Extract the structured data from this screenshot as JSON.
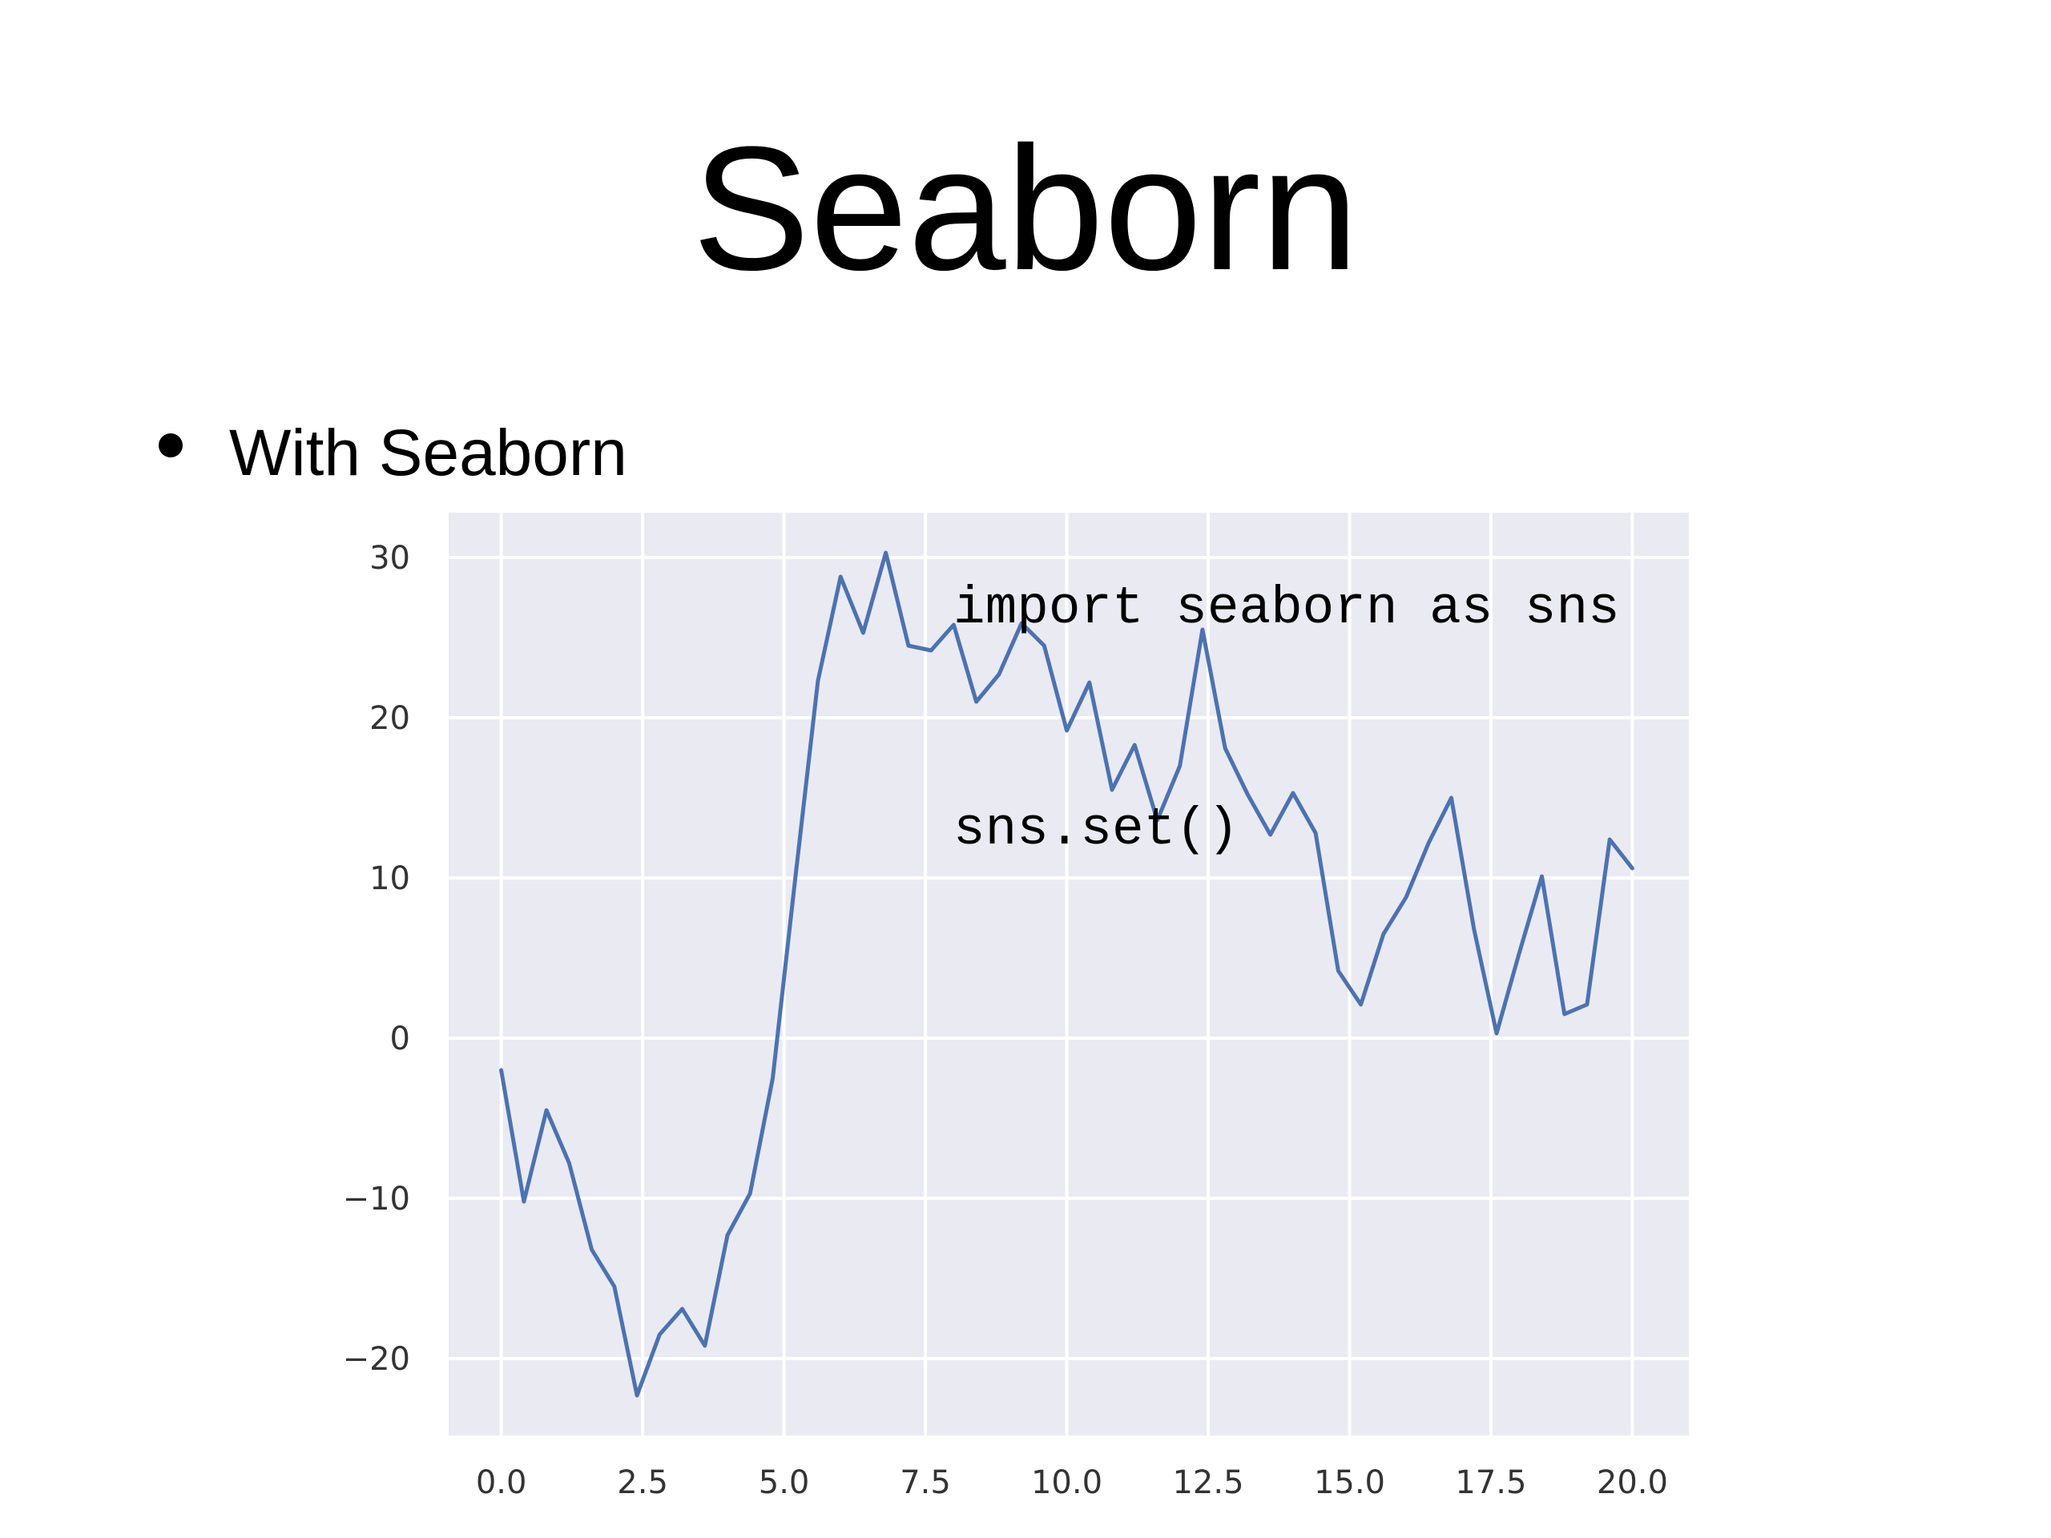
{
  "slide": {
    "title": "Seaborn",
    "bullet_text": "With Seaborn",
    "code_lines": [
      "import seaborn as sns",
      "sns.set()"
    ]
  },
  "colors": {
    "plot_background": "#eaeaf2",
    "grid": "#ffffff",
    "line": "#4c72b0"
  },
  "chart_data": {
    "type": "line",
    "title": "",
    "xlabel": "",
    "ylabel": "",
    "xlim": [
      -0.93,
      21.0
    ],
    "ylim": [
      -24.8,
      32.8
    ],
    "x_ticks": [
      0.0,
      2.5,
      5.0,
      7.5,
      10.0,
      12.5,
      15.0,
      17.5,
      20.0
    ],
    "x_tick_labels": [
      "0.0",
      "2.5",
      "5.0",
      "7.5",
      "10.0",
      "12.5",
      "15.0",
      "17.5",
      "20.0"
    ],
    "y_ticks": [
      -20,
      -10,
      0,
      10,
      20,
      30
    ],
    "y_tick_labels": [
      "−20",
      "−10",
      "0",
      "10",
      "20",
      "30"
    ],
    "grid": true,
    "series": [
      {
        "x": [
          0.0,
          0.4,
          0.8,
          1.2,
          1.6,
          2.0,
          2.4,
          2.8,
          3.2,
          3.6,
          4.0,
          4.4,
          4.8,
          5.2,
          5.6,
          6.0,
          6.4,
          6.8,
          7.2,
          7.6,
          8.0,
          8.4,
          8.8,
          9.2,
          9.6,
          10.0,
          10.4,
          10.8,
          11.2,
          11.6,
          12.0,
          12.4,
          12.8,
          13.2,
          13.6,
          14.0,
          14.4,
          14.8,
          15.2,
          15.6,
          16.0,
          16.4,
          16.8,
          17.2,
          17.6,
          18.0,
          18.4,
          18.8,
          19.2,
          19.6,
          20.0
        ],
        "values": [
          -2.0,
          -10.2,
          -4.5,
          -7.8,
          -13.2,
          -15.5,
          -22.3,
          -18.5,
          -16.9,
          -19.2,
          -12.3,
          -9.7,
          -2.5,
          10.0,
          22.3,
          28.8,
          25.3,
          30.3,
          24.5,
          24.2,
          25.8,
          21.0,
          22.7,
          25.9,
          24.5,
          19.2,
          22.2,
          15.5,
          18.3,
          13.6,
          17.0,
          25.5,
          18.1,
          15.2,
          12.7,
          15.3,
          12.8,
          4.2,
          2.1,
          6.5,
          8.8,
          12.2,
          15.0,
          6.8,
          0.3,
          5.3,
          10.1,
          1.5,
          2.1,
          12.4,
          10.6
        ]
      }
    ]
  }
}
